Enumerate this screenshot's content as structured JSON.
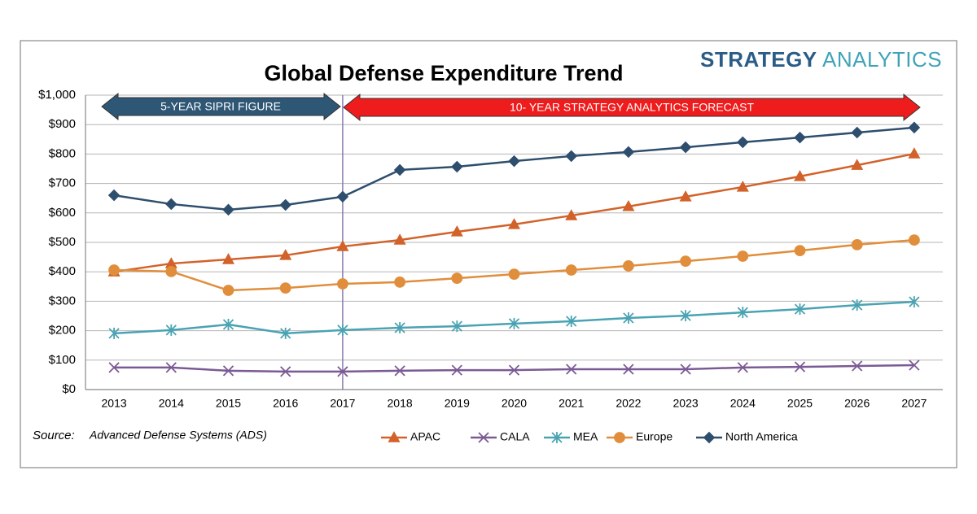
{
  "chart_data": {
    "type": "line",
    "title": "Global Defense Expenditure Trend",
    "logo": [
      "STRATEGY",
      "ANALYTICS"
    ],
    "annotations": [
      "5-YEAR SIPRI FIGURE",
      "10- YEAR STRATEGY ANALYTICS FORECAST"
    ],
    "source_label": "Source:",
    "source": "Advanced Defense Systems (ADS)",
    "categories": [
      "2013",
      "2014",
      "2015",
      "2016",
      "2017",
      "2018",
      "2019",
      "2020",
      "2021",
      "2022",
      "2023",
      "2024",
      "2025",
      "2026",
      "2027"
    ],
    "series": [
      {
        "name": "APAC",
        "color": "#d2622a",
        "marker": "triangle",
        "values": [
          400,
          428,
          442,
          456,
          486,
          508,
          536,
          561,
          591,
          622,
          655,
          688,
          724,
          762,
          801
        ]
      },
      {
        "name": "CALA",
        "color": "#7b5a94",
        "marker": "x",
        "values": [
          75,
          75,
          64,
          61,
          61,
          64,
          66,
          66,
          69,
          69,
          69,
          75,
          77,
          80,
          83
        ]
      },
      {
        "name": "MEA",
        "color": "#4aa3b2",
        "marker": "star",
        "values": [
          191,
          202,
          221,
          191,
          202,
          210,
          215,
          224,
          232,
          243,
          251,
          262,
          273,
          287,
          298
        ]
      },
      {
        "name": "Europe",
        "color": "#e08e3c",
        "marker": "circle",
        "values": [
          406,
          401,
          337,
          345,
          359,
          365,
          378,
          392,
          406,
          420,
          436,
          453,
          472,
          492,
          508
        ]
      },
      {
        "name": "North America",
        "color": "#2e4e6e",
        "marker": "diamond",
        "values": [
          660,
          630,
          611,
          627,
          655,
          746,
          757,
          776,
          793,
          807,
          823,
          840,
          856,
          873,
          890
        ]
      }
    ],
    "ylim": [
      0,
      1000
    ],
    "yticks": [
      {
        "value": 0,
        "label": "$0"
      },
      {
        "value": 100,
        "label": "$100"
      },
      {
        "value": 200,
        "label": "$200"
      },
      {
        "value": 300,
        "label": "$300"
      },
      {
        "value": 400,
        "label": "$400"
      },
      {
        "value": 500,
        "label": "$500"
      },
      {
        "value": 600,
        "label": "$600"
      },
      {
        "value": 700,
        "label": "$700"
      },
      {
        "value": 800,
        "label": "$800"
      },
      {
        "value": 900,
        "label": "$900"
      },
      {
        "value": 1000,
        "label": "$1,000"
      }
    ],
    "grid": true
  }
}
